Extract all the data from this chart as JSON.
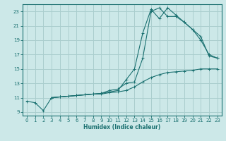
{
  "background_color": "#cce8e8",
  "grid_color": "#aacece",
  "line_color": "#1a7070",
  "xlabel": "Humidex (Indice chaleur)",
  "xlim": [
    -0.5,
    23.5
  ],
  "ylim": [
    8.5,
    24.0
  ],
  "yticks": [
    9,
    11,
    13,
    15,
    17,
    19,
    21,
    23
  ],
  "xticks": [
    0,
    1,
    2,
    3,
    4,
    5,
    6,
    7,
    8,
    9,
    10,
    11,
    12,
    13,
    14,
    15,
    16,
    17,
    18,
    19,
    20,
    21,
    22,
    23
  ],
  "series1_x": [
    0,
    1,
    2,
    3,
    4,
    5,
    6,
    7,
    8,
    9,
    10,
    11,
    12,
    13,
    14,
    15,
    16,
    17,
    18,
    19,
    20,
    21,
    22,
    23
  ],
  "series1_y": [
    10.5,
    10.3,
    9.2,
    11.0,
    11.1,
    11.2,
    11.3,
    11.4,
    11.5,
    11.5,
    11.7,
    11.8,
    12.0,
    12.5,
    13.2,
    13.8,
    14.2,
    14.5,
    14.6,
    14.7,
    14.8,
    15.0,
    15.0,
    15.0
  ],
  "series2_x": [
    3,
    4,
    5,
    6,
    7,
    8,
    9,
    10,
    11,
    12,
    13,
    14,
    15,
    16,
    17,
    18,
    19,
    20,
    21,
    22,
    23
  ],
  "series2_y": [
    11.0,
    11.1,
    11.2,
    11.3,
    11.4,
    11.5,
    11.6,
    11.8,
    12.0,
    13.5,
    15.0,
    20.0,
    23.3,
    22.0,
    23.5,
    22.5,
    21.5,
    20.5,
    19.0,
    17.0,
    16.5
  ],
  "series3_x": [
    3,
    4,
    5,
    6,
    7,
    8,
    9,
    10,
    11,
    12,
    13,
    14,
    15,
    16,
    17,
    18,
    19,
    20,
    21,
    22,
    23
  ],
  "series3_y": [
    11.0,
    11.1,
    11.2,
    11.3,
    11.4,
    11.5,
    11.6,
    12.0,
    12.2,
    13.0,
    13.2,
    16.5,
    23.0,
    23.5,
    22.3,
    22.3,
    21.5,
    20.5,
    19.5,
    16.8,
    16.5
  ]
}
